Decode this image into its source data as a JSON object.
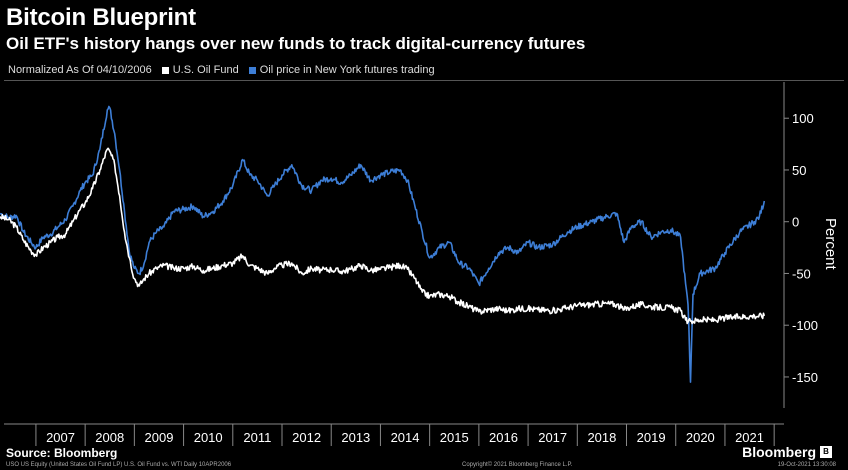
{
  "title": "Bitcoin Blueprint",
  "subtitle": "Oil ETF's history hangs over new funds to track digital-currency futures",
  "legend": {
    "note": "Normalized As Of 04/10/2006",
    "items": [
      {
        "label": "U.S. Oil Fund",
        "color": "#ffffff"
      },
      {
        "label": "Oil price in New York futures trading",
        "color": "#3d7ed6"
      }
    ]
  },
  "footer": {
    "source": "Source: Bloomberg",
    "brand": "Bloomberg",
    "fine_left": "USO US Equity (United States Oil Fund LP) U.S. Oil Fund vs. WTI  Daily 10APR2006",
    "fine_mid": "Copyright© 2021 Bloomberg Finance L.P.",
    "fine_right": "19-Oct-2021 13:30:08"
  },
  "chart_data": {
    "type": "line",
    "ylabel": "Percent",
    "ylim": [
      -180,
      135
    ],
    "yticks": [
      -150,
      -100,
      -50,
      0,
      50,
      100
    ],
    "xlim": [
      2006.27,
      2022.2
    ],
    "xticks": [
      "2007",
      "2008",
      "2009",
      "2010",
      "2011",
      "2012",
      "2013",
      "2014",
      "2015",
      "2016",
      "2017",
      "2018",
      "2019",
      "2020",
      "2021"
    ],
    "grid": false,
    "series": [
      {
        "name": "U.S. Oil Fund",
        "color": "#ffffff",
        "points": [
          [
            2006.27,
            5
          ],
          [
            2006.45,
            2
          ],
          [
            2006.6,
            -5
          ],
          [
            2006.75,
            -18
          ],
          [
            2006.9,
            -28
          ],
          [
            2007.0,
            -32
          ],
          [
            2007.15,
            -25
          ],
          [
            2007.3,
            -20
          ],
          [
            2007.45,
            -15
          ],
          [
            2007.6,
            -12
          ],
          [
            2007.75,
            0
          ],
          [
            2007.9,
            12
          ],
          [
            2008.0,
            18
          ],
          [
            2008.15,
            32
          ],
          [
            2008.3,
            50
          ],
          [
            2008.45,
            70
          ],
          [
            2008.5,
            68
          ],
          [
            2008.6,
            55
          ],
          [
            2008.7,
            25
          ],
          [
            2008.8,
            -10
          ],
          [
            2008.9,
            -35
          ],
          [
            2009.0,
            -55
          ],
          [
            2009.1,
            -62
          ],
          [
            2009.2,
            -55
          ],
          [
            2009.3,
            -50
          ],
          [
            2009.45,
            -45
          ],
          [
            2009.6,
            -42
          ],
          [
            2009.8,
            -45
          ],
          [
            2010.0,
            -45
          ],
          [
            2010.2,
            -43
          ],
          [
            2010.4,
            -47
          ],
          [
            2010.6,
            -45
          ],
          [
            2010.8,
            -42
          ],
          [
            2011.0,
            -40
          ],
          [
            2011.2,
            -33
          ],
          [
            2011.35,
            -42
          ],
          [
            2011.5,
            -45
          ],
          [
            2011.7,
            -50
          ],
          [
            2011.85,
            -45
          ],
          [
            2012.0,
            -42
          ],
          [
            2012.2,
            -40
          ],
          [
            2012.4,
            -50
          ],
          [
            2012.6,
            -45
          ],
          [
            2012.8,
            -47
          ],
          [
            2013.0,
            -46
          ],
          [
            2013.2,
            -48
          ],
          [
            2013.4,
            -46
          ],
          [
            2013.6,
            -42
          ],
          [
            2013.8,
            -47
          ],
          [
            2014.0,
            -46
          ],
          [
            2014.2,
            -44
          ],
          [
            2014.4,
            -42
          ],
          [
            2014.55,
            -46
          ],
          [
            2014.7,
            -55
          ],
          [
            2014.85,
            -68
          ],
          [
            2015.0,
            -72
          ],
          [
            2015.2,
            -70
          ],
          [
            2015.4,
            -72
          ],
          [
            2015.6,
            -78
          ],
          [
            2015.8,
            -82
          ],
          [
            2016.0,
            -87
          ],
          [
            2016.2,
            -85
          ],
          [
            2016.4,
            -84
          ],
          [
            2016.6,
            -86
          ],
          [
            2016.8,
            -84
          ],
          [
            2017.0,
            -84
          ],
          [
            2017.2,
            -85
          ],
          [
            2017.5,
            -86
          ],
          [
            2017.8,
            -83
          ],
          [
            2018.0,
            -81
          ],
          [
            2018.3,
            -80
          ],
          [
            2018.6,
            -79
          ],
          [
            2018.8,
            -80
          ],
          [
            2018.95,
            -85
          ],
          [
            2019.1,
            -82
          ],
          [
            2019.3,
            -80
          ],
          [
            2019.5,
            -82
          ],
          [
            2019.7,
            -83
          ],
          [
            2019.9,
            -83
          ],
          [
            2020.1,
            -86
          ],
          [
            2020.2,
            -95
          ],
          [
            2020.25,
            -97
          ],
          [
            2020.3,
            -96
          ],
          [
            2020.5,
            -95
          ],
          [
            2020.8,
            -95
          ],
          [
            2021.0,
            -93
          ],
          [
            2021.3,
            -92
          ],
          [
            2021.6,
            -91
          ],
          [
            2021.8,
            -91
          ]
        ]
      },
      {
        "name": "Oil price in New York futures trading",
        "color": "#3d7ed6",
        "points": [
          [
            2006.27,
            8
          ],
          [
            2006.45,
            4
          ],
          [
            2006.6,
            6
          ],
          [
            2006.75,
            -10
          ],
          [
            2006.9,
            -20
          ],
          [
            2007.0,
            -25
          ],
          [
            2007.15,
            -15
          ],
          [
            2007.3,
            -12
          ],
          [
            2007.45,
            -5
          ],
          [
            2007.6,
            2
          ],
          [
            2007.75,
            15
          ],
          [
            2007.9,
            30
          ],
          [
            2008.0,
            38
          ],
          [
            2008.15,
            45
          ],
          [
            2008.3,
            70
          ],
          [
            2008.45,
            108
          ],
          [
            2008.5,
            110
          ],
          [
            2008.6,
            85
          ],
          [
            2008.7,
            50
          ],
          [
            2008.8,
            10
          ],
          [
            2008.9,
            -30
          ],
          [
            2009.0,
            -45
          ],
          [
            2009.1,
            -50
          ],
          [
            2009.2,
            -40
          ],
          [
            2009.3,
            -20
          ],
          [
            2009.45,
            -10
          ],
          [
            2009.6,
            -5
          ],
          [
            2009.8,
            10
          ],
          [
            2010.0,
            12
          ],
          [
            2010.2,
            15
          ],
          [
            2010.4,
            5
          ],
          [
            2010.6,
            10
          ],
          [
            2010.8,
            20
          ],
          [
            2011.0,
            35
          ],
          [
            2011.2,
            60
          ],
          [
            2011.35,
            45
          ],
          [
            2011.5,
            40
          ],
          [
            2011.7,
            25
          ],
          [
            2011.85,
            35
          ],
          [
            2012.0,
            45
          ],
          [
            2012.2,
            55
          ],
          [
            2012.4,
            35
          ],
          [
            2012.6,
            30
          ],
          [
            2012.8,
            40
          ],
          [
            2013.0,
            42
          ],
          [
            2013.2,
            38
          ],
          [
            2013.4,
            45
          ],
          [
            2013.6,
            55
          ],
          [
            2013.8,
            40
          ],
          [
            2014.0,
            45
          ],
          [
            2014.2,
            48
          ],
          [
            2014.4,
            50
          ],
          [
            2014.55,
            40
          ],
          [
            2014.7,
            15
          ],
          [
            2014.85,
            -10
          ],
          [
            2015.0,
            -35
          ],
          [
            2015.2,
            -25
          ],
          [
            2015.4,
            -20
          ],
          [
            2015.6,
            -40
          ],
          [
            2015.8,
            -45
          ],
          [
            2016.0,
            -60
          ],
          [
            2016.2,
            -45
          ],
          [
            2016.4,
            -30
          ],
          [
            2016.6,
            -25
          ],
          [
            2016.8,
            -30
          ],
          [
            2017.0,
            -20
          ],
          [
            2017.2,
            -25
          ],
          [
            2017.5,
            -22
          ],
          [
            2017.8,
            -10
          ],
          [
            2018.0,
            -5
          ],
          [
            2018.3,
            0
          ],
          [
            2018.6,
            5
          ],
          [
            2018.8,
            8
          ],
          [
            2018.95,
            -20
          ],
          [
            2019.1,
            -5
          ],
          [
            2019.3,
            0
          ],
          [
            2019.5,
            -15
          ],
          [
            2019.7,
            -10
          ],
          [
            2019.9,
            -8
          ],
          [
            2020.1,
            -15
          ],
          [
            2020.2,
            -60
          ],
          [
            2020.25,
            -80
          ],
          [
            2020.3,
            -155
          ],
          [
            2020.35,
            -70
          ],
          [
            2020.5,
            -50
          ],
          [
            2020.8,
            -45
          ],
          [
            2021.0,
            -30
          ],
          [
            2021.3,
            -10
          ],
          [
            2021.6,
            0
          ],
          [
            2021.7,
            5
          ],
          [
            2021.8,
            20
          ]
        ]
      }
    ]
  }
}
